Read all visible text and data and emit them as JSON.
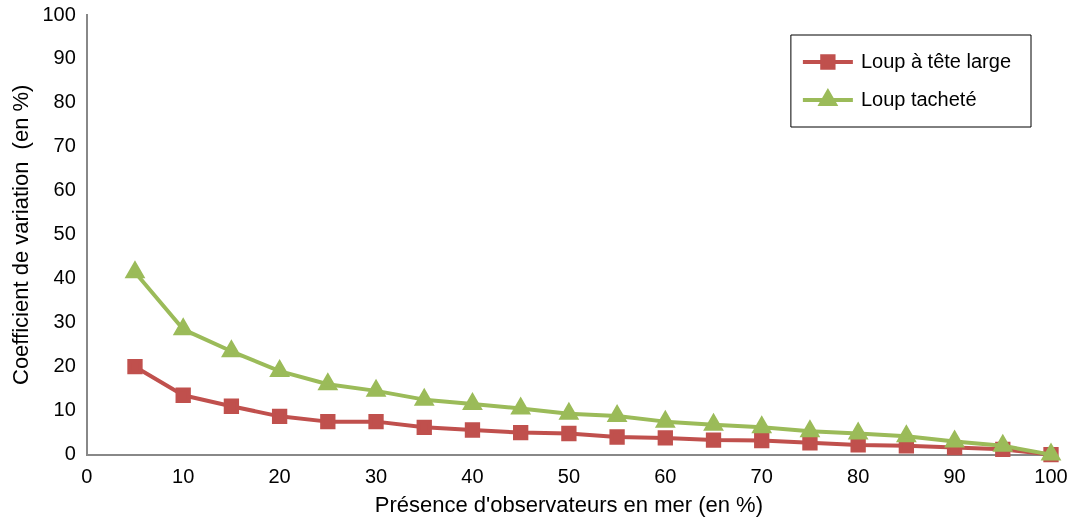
{
  "chart_data": {
    "type": "line",
    "xlabel": "Présence d'observateurs en mer (en %)",
    "ylabel": "Coefficient de variation  (en %)",
    "x": [
      5,
      10,
      15,
      20,
      25,
      30,
      35,
      40,
      45,
      50,
      55,
      60,
      65,
      70,
      75,
      80,
      85,
      90,
      95,
      100
    ],
    "xlim": [
      0,
      100
    ],
    "xticks": [
      0,
      10,
      20,
      30,
      40,
      50,
      60,
      70,
      80,
      90,
      100
    ],
    "ylim": [
      0,
      100
    ],
    "yticks": [
      0,
      10,
      20,
      30,
      40,
      50,
      60,
      70,
      80,
      90,
      100
    ],
    "grid": false,
    "legend": "top right",
    "line_style": "solid",
    "series": [
      {
        "name": "Loup à tête large",
        "color": "#c0504d",
        "marker": "square",
        "values": [
          20,
          13.5,
          11,
          8.7,
          7.5,
          7.5,
          6.2,
          5.6,
          5,
          4.8,
          4,
          3.8,
          3.3,
          3.2,
          2.7,
          2.2,
          2,
          1.6,
          1.2,
          0
        ]
      },
      {
        "name": "Loup tacheté",
        "color": "#9bbb59",
        "marker": "triangle",
        "values": [
          41.5,
          28.5,
          23.5,
          19,
          16,
          14.5,
          12.5,
          11.5,
          10.5,
          9.3,
          8.8,
          7.5,
          6.8,
          6.2,
          5.3,
          4.8,
          4.2,
          3,
          2,
          0
        ]
      }
    ]
  }
}
